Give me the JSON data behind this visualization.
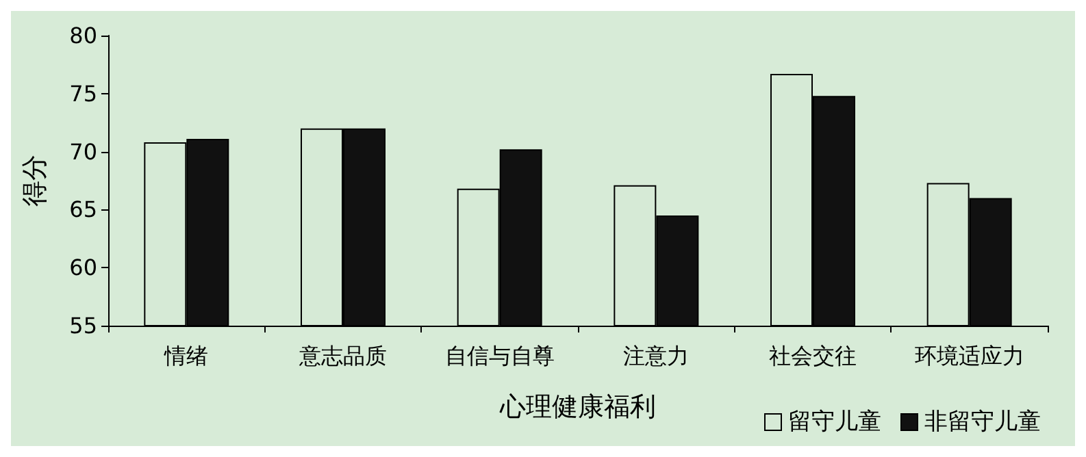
{
  "chart_data": {
    "type": "bar",
    "xlabel": "心理健康福利",
    "ylabel": "得分",
    "categories": [
      "情绪",
      "意志品质",
      "自信与自尊",
      "注意力",
      "社会交往",
      "环境适应力"
    ],
    "series": [
      {
        "name": "留守儿童",
        "color": "#d6ead6",
        "values": [
          70.8,
          72.0,
          66.8,
          67.1,
          76.7,
          67.3
        ]
      },
      {
        "name": "非留守儿童",
        "color": "#111111",
        "values": [
          71.1,
          72.0,
          70.2,
          64.5,
          74.8,
          66.0
        ]
      }
    ],
    "ylim": [
      55,
      80
    ],
    "yticks": [
      55,
      60,
      65,
      70,
      75,
      80
    ],
    "grid": false,
    "legend": "bottom right"
  }
}
